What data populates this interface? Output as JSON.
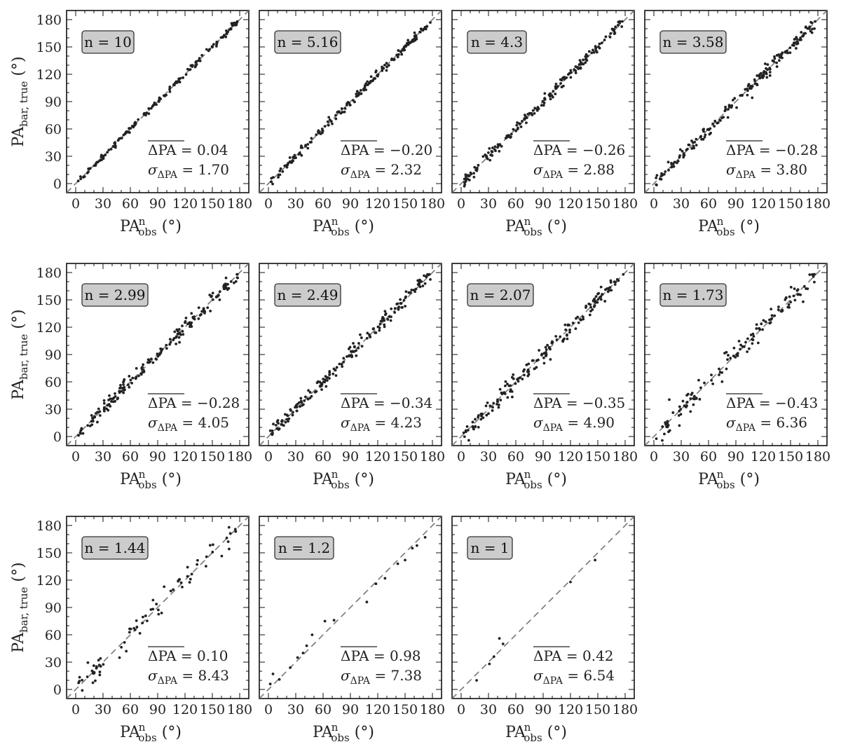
{
  "chart_data": {
    "type": "scatter",
    "layout": "grid 3 rows x 4 columns",
    "xlabel": "PA_obs^n (°)",
    "ylabel": "PA_bar, true (°)",
    "xlim": [
      -10,
      190
    ],
    "ylim": [
      -10,
      190
    ],
    "xticks": [
      0,
      30,
      60,
      90,
      120,
      150,
      180
    ],
    "yticks": [
      0,
      30,
      60,
      90,
      120,
      150,
      180
    ],
    "reference_line": "y = x (dashed gray)",
    "panels": [
      {
        "n_label": "n = 10",
        "mean_label": "ΔPA",
        "mean_value": "= 0.04",
        "sigma_label": "σ",
        "sigma_sub": "ΔPA",
        "sigma_value": "= 1.70",
        "points": 150,
        "scatter": 1.7
      },
      {
        "n_label": "n = 5.16",
        "mean_label": "ΔPA",
        "mean_value": "= −0.20",
        "sigma_label": "σ",
        "sigma_sub": "ΔPA",
        "sigma_value": "= 2.32",
        "points": 170,
        "scatter": 2.32
      },
      {
        "n_label": "n = 4.3",
        "mean_label": "ΔPA",
        "mean_value": "= −0.26",
        "sigma_label": "σ",
        "sigma_sub": "ΔPA",
        "sigma_value": "= 2.88",
        "points": 180,
        "scatter": 2.88
      },
      {
        "n_label": "n = 3.58",
        "mean_label": "ΔPA",
        "mean_value": "= −0.28",
        "sigma_label": "σ",
        "sigma_sub": "ΔPA",
        "sigma_value": "= 3.80",
        "points": 180,
        "scatter": 3.8
      },
      {
        "n_label": "n = 2.99",
        "mean_label": "ΔPA",
        "mean_value": "= −0.28",
        "sigma_label": "σ",
        "sigma_sub": "ΔPA",
        "sigma_value": "= 4.05",
        "points": 180,
        "scatter": 4.05
      },
      {
        "n_label": "n = 2.49",
        "mean_label": "ΔPA",
        "mean_value": "= −0.34",
        "sigma_label": "σ",
        "sigma_sub": "ΔPA",
        "sigma_value": "= 4.23",
        "points": 180,
        "scatter": 4.23
      },
      {
        "n_label": "n = 2.07",
        "mean_label": "ΔPA",
        "mean_value": "= −0.35",
        "sigma_label": "σ",
        "sigma_sub": "ΔPA",
        "sigma_value": "= 4.90",
        "points": 170,
        "scatter": 4.9
      },
      {
        "n_label": "n = 1.73",
        "mean_label": "ΔPA",
        "mean_value": "= −0.43",
        "sigma_label": "σ",
        "sigma_sub": "ΔPA",
        "sigma_value": "= 6.36",
        "points": 130,
        "scatter": 6.36
      },
      {
        "n_label": "n = 1.44",
        "mean_label": "ΔPA",
        "mean_value": "= 0.10",
        "sigma_label": "σ",
        "sigma_sub": "ΔPA",
        "sigma_value": "= 8.43",
        "points": 75,
        "scatter": 8.43
      },
      {
        "n_label": "n = 1.2",
        "mean_label": "ΔPA",
        "mean_value": "= 0.98",
        "sigma_label": "σ",
        "sigma_sub": "ΔPA",
        "sigma_value": "= 7.38",
        "points": 22,
        "scatter": 7.38
      },
      {
        "n_label": "n = 1",
        "mean_label": "ΔPA",
        "mean_value": "= 0.42",
        "sigma_label": "σ",
        "sigma_sub": "ΔPA",
        "sigma_value": "= 6.54",
        "points": 10,
        "scatter": 6.54
      }
    ],
    "series": [
      {
        "panel": "n = 1.2",
        "x": [
          2,
          5,
          12,
          24,
          32,
          38,
          42,
          48,
          62,
          72,
          108,
          118,
          128,
          142,
          150,
          158,
          163,
          172
        ],
        "y": [
          6,
          17,
          11,
          24,
          35,
          40,
          48,
          60,
          75,
          76,
          96,
          116,
          122,
          138,
          142,
          155,
          158,
          167
        ]
      },
      {
        "panel": "n = 1",
        "x": [
          17,
          31,
          36,
          42,
          46,
          120,
          147
        ],
        "y": [
          10,
          28,
          36,
          56,
          50,
          118,
          142
        ]
      }
    ]
  }
}
